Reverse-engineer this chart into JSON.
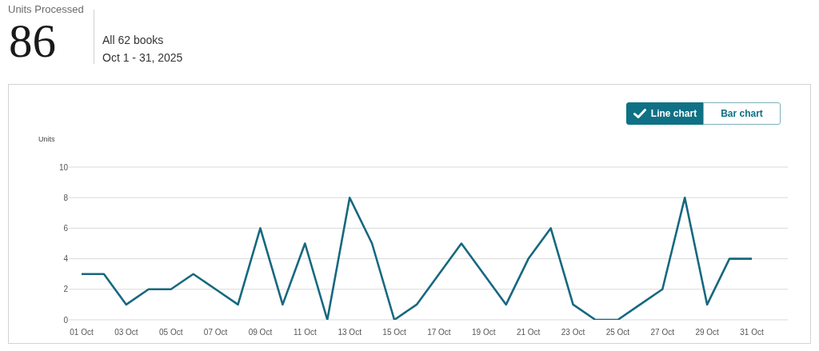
{
  "chart_data": {
    "type": "line",
    "title": "Units Processed",
    "subtitle": "All 62 books",
    "annotations": [
      "86",
      "Oct 1 - 31, 2025",
      "Line chart",
      "Bar chart"
    ],
    "ylabel": "Units",
    "categories": [
      "01 Oct",
      null,
      "03 Oct",
      null,
      "05 Oct",
      null,
      "07 Oct",
      null,
      "09 Oct",
      null,
      "11 Oct",
      null,
      "13 Oct",
      null,
      "15 Oct",
      null,
      "17 Oct",
      null,
      "19 Oct",
      null,
      "21 Oct",
      null,
      "23 Oct",
      null,
      "25 Oct",
      null,
      "27 Oct",
      null,
      "29 Oct",
      null,
      "31 Oct"
    ],
    "values": [
      3,
      3,
      1,
      2,
      2,
      3,
      2,
      1,
      6,
      1,
      5,
      0,
      8,
      5,
      0,
      1,
      3,
      5,
      3,
      1,
      4,
      6,
      1,
      0,
      0,
      1,
      2,
      8,
      1,
      4,
      4
    ],
    "color": "#17687f",
    "ylim": [
      0,
      10
    ],
    "yticks": [
      0,
      2,
      4,
      6,
      8,
      10
    ],
    "grid": "y"
  }
}
